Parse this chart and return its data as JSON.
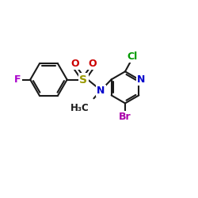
{
  "background_color": "#ffffff",
  "bond_color": "#1a1a1a",
  "bond_width": 1.5,
  "atom_colors": {
    "F": "#aa00cc",
    "O": "#cc0000",
    "S": "#999900",
    "N": "#0000cc",
    "Cl": "#009900",
    "Br": "#aa00aa",
    "C": "#1a1a1a"
  },
  "font_size": 9,
  "figsize": [
    2.5,
    2.5
  ],
  "dpi": 100,
  "xlim": [
    0,
    10
  ],
  "ylim": [
    0,
    10
  ]
}
